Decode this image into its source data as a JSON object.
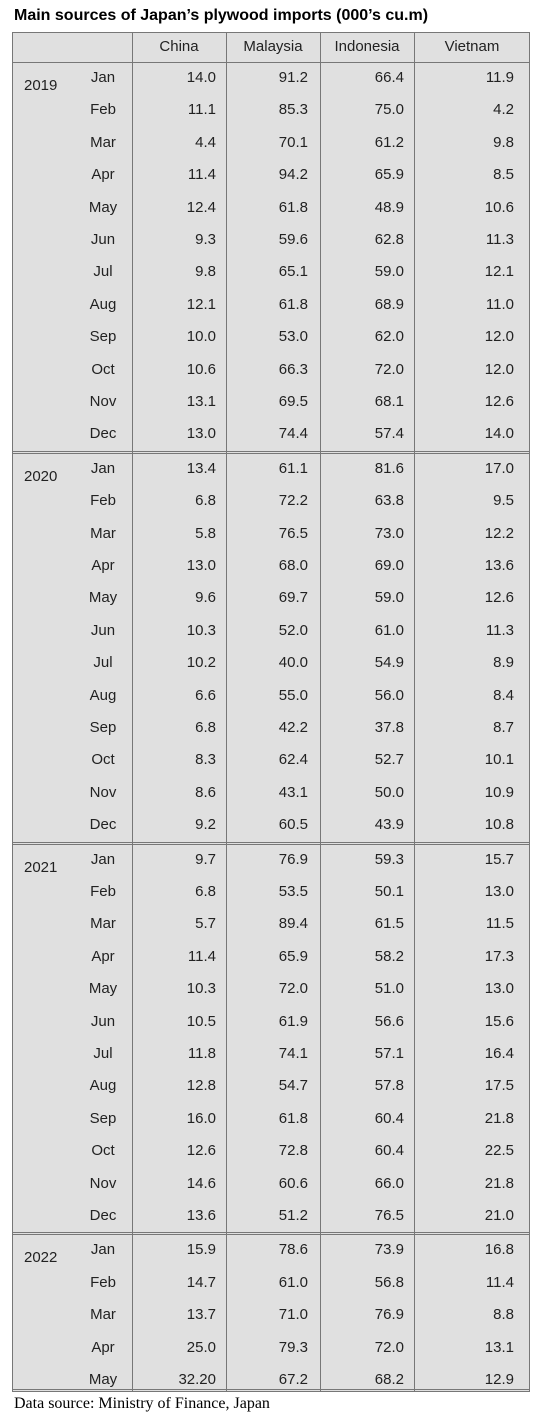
{
  "title": "Main sources of Japan’s plywood imports (000’s cu.m)",
  "table": {
    "columns": [
      "China",
      "Malaysia",
      "Indonesia",
      "Vietnam"
    ],
    "groups": [
      {
        "year": "2019",
        "rows": [
          [
            "Jan",
            "14.0",
            "91.2",
            "66.4",
            "11.9"
          ],
          [
            "Feb",
            "11.1",
            "85.3",
            "75.0",
            "4.2"
          ],
          [
            "Mar",
            "4.4",
            "70.1",
            "61.2",
            "9.8"
          ],
          [
            "Apr",
            "11.4",
            "94.2",
            "65.9",
            "8.5"
          ],
          [
            "May",
            "12.4",
            "61.8",
            "48.9",
            "10.6"
          ],
          [
            "Jun",
            "9.3",
            "59.6",
            "62.8",
            "11.3"
          ],
          [
            "Jul",
            "9.8",
            "65.1",
            "59.0",
            "12.1"
          ],
          [
            "Aug",
            "12.1",
            "61.8",
            "68.9",
            "11.0"
          ],
          [
            "Sep",
            "10.0",
            "53.0",
            "62.0",
            "12.0"
          ],
          [
            "Oct",
            "10.6",
            "66.3",
            "72.0",
            "12.0"
          ],
          [
            "Nov",
            "13.1",
            "69.5",
            "68.1",
            "12.6"
          ],
          [
            "Dec",
            "13.0",
            "74.4",
            "57.4",
            "14.0"
          ]
        ]
      },
      {
        "year": "2020",
        "rows": [
          [
            "Jan",
            "13.4",
            "61.1",
            "81.6",
            "17.0"
          ],
          [
            "Feb",
            "6.8",
            "72.2",
            "63.8",
            "9.5"
          ],
          [
            "Mar",
            "5.8",
            "76.5",
            "73.0",
            "12.2"
          ],
          [
            "Apr",
            "13.0",
            "68.0",
            "69.0",
            "13.6"
          ],
          [
            "May",
            "9.6",
            "69.7",
            "59.0",
            "12.6"
          ],
          [
            "Jun",
            "10.3",
            "52.0",
            "61.0",
            "11.3"
          ],
          [
            "Jul",
            "10.2",
            "40.0",
            "54.9",
            "8.9"
          ],
          [
            "Aug",
            "6.6",
            "55.0",
            "56.0",
            "8.4"
          ],
          [
            "Sep",
            "6.8",
            "42.2",
            "37.8",
            "8.7"
          ],
          [
            "Oct",
            "8.3",
            "62.4",
            "52.7",
            "10.1"
          ],
          [
            "Nov",
            "8.6",
            "43.1",
            "50.0",
            "10.9"
          ],
          [
            "Dec",
            "9.2",
            "60.5",
            "43.9",
            "10.8"
          ]
        ]
      },
      {
        "year": "2021",
        "rows": [
          [
            "Jan",
            "9.7",
            "76.9",
            "59.3",
            "15.7"
          ],
          [
            "Feb",
            "6.8",
            "53.5",
            "50.1",
            "13.0"
          ],
          [
            "Mar",
            "5.7",
            "89.4",
            "61.5",
            "11.5"
          ],
          [
            "Apr",
            "11.4",
            "65.9",
            "58.2",
            "17.3"
          ],
          [
            "May",
            "10.3",
            "72.0",
            "51.0",
            "13.0"
          ],
          [
            "Jun",
            "10.5",
            "61.9",
            "56.6",
            "15.6"
          ],
          [
            "Jul",
            "11.8",
            "74.1",
            "57.1",
            "16.4"
          ],
          [
            "Aug",
            "12.8",
            "54.7",
            "57.8",
            "17.5"
          ],
          [
            "Sep",
            "16.0",
            "61.8",
            "60.4",
            "21.8"
          ],
          [
            "Oct",
            "12.6",
            "72.8",
            "60.4",
            "22.5"
          ],
          [
            "Nov",
            "14.6",
            "60.6",
            "66.0",
            "21.8"
          ],
          [
            "Dec",
            "13.6",
            "51.2",
            "76.5",
            "21.0"
          ]
        ]
      },
      {
        "year": "2022",
        "rows": [
          [
            "Jan",
            "15.9",
            "78.6",
            "73.9",
            "16.8"
          ],
          [
            "Feb",
            "14.7",
            "61.0",
            "56.8",
            "11.4"
          ],
          [
            "Mar",
            "13.7",
            "71.0",
            "76.9",
            "8.8"
          ],
          [
            "Apr",
            "25.0",
            "79.3",
            "72.0",
            "13.1"
          ],
          [
            "May",
            "32.20",
            "67.2",
            "68.2",
            "12.9"
          ]
        ]
      }
    ]
  },
  "source": "Data source: Ministry of Finance, Japan"
}
